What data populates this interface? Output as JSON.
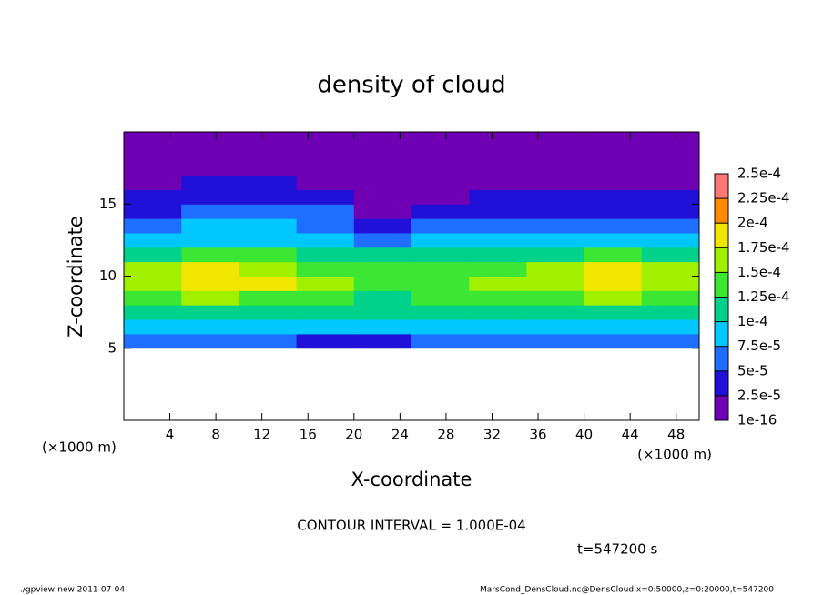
{
  "chart_data": {
    "type": "heatmap",
    "title": "density of cloud",
    "x_label": "X-coordinate",
    "y_label": "Z-coordinate",
    "x_unit": "(×1000 m)",
    "x_unit_right": "(×1000 m)",
    "contour_note": "CONTOUR INTERVAL = 1.000E-04",
    "time_note": "t=547200 s",
    "footer_left": "./gpview-new  2011-07-04",
    "footer_right": "MarsCond_DensCloud.nc@DensCloud,x=0:50000,z=0:20000,t=547200",
    "xlim": [
      0,
      50
    ],
    "xticks": [
      4,
      8,
      12,
      16,
      20,
      24,
      28,
      32,
      36,
      40,
      44,
      48
    ],
    "ylim": [
      0,
      20
    ],
    "yticks": [
      5,
      10,
      15
    ],
    "clim": [
      1e-16,
      0.00025
    ],
    "cticks": [
      {
        "value": 1e-16,
        "label": "1e-16"
      },
      {
        "value": 2.5e-05,
        "label": "2.5e-5"
      },
      {
        "value": 5e-05,
        "label": "5e-5"
      },
      {
        "value": 7.5e-05,
        "label": "7.5e-5"
      },
      {
        "value": 0.0001,
        "label": "1e-4"
      },
      {
        "value": 0.000125,
        "label": "1.25e-4"
      },
      {
        "value": 0.00015,
        "label": "1.5e-4"
      },
      {
        "value": 0.000175,
        "label": "1.75e-4"
      },
      {
        "value": 0.0002,
        "label": "2e-4"
      },
      {
        "value": 0.000225,
        "label": "2.25e-4"
      },
      {
        "value": 0.00025,
        "label": "2.5e-4"
      }
    ],
    "colors": [
      "#7000b4",
      "#2010d8",
      "#1e6eff",
      "#00c8ff",
      "#00d28c",
      "#3ce632",
      "#a0f000",
      "#f0e600",
      "#ff8c00",
      "#ff7878"
    ],
    "x": [
      2.5,
      7.5,
      12.5,
      17.5,
      22.5,
      27.5,
      32.5,
      37.5,
      42.5,
      47.5
    ],
    "y": [
      0.5,
      1.5,
      2.5,
      3.5,
      4.5,
      5.5,
      6.5,
      7.5,
      8.5,
      9.5,
      10.5,
      11.5,
      12.5,
      13.5,
      14.5,
      15.5,
      16.5,
      17.5,
      18.5,
      19.5
    ],
    "z": [
      [
        null,
        null,
        null,
        null,
        null,
        null,
        null,
        null,
        null,
        null
      ],
      [
        null,
        null,
        null,
        null,
        null,
        null,
        null,
        null,
        null,
        null
      ],
      [
        null,
        null,
        null,
        null,
        null,
        null,
        null,
        null,
        null,
        null
      ],
      [
        null,
        null,
        null,
        null,
        null,
        null,
        null,
        null,
        null,
        null
      ],
      [
        null,
        null,
        null,
        null,
        null,
        null,
        null,
        null,
        null,
        null
      ],
      [
        5e-05,
        5e-05,
        5e-05,
        4e-05,
        4e-05,
        6e-05,
        6e-05,
        5e-05,
        5e-05,
        5e-05
      ],
      [
        8e-05,
        8e-05,
        8e-05,
        8e-05,
        8e-05,
        8.5e-05,
        8.5e-05,
        8e-05,
        8e-05,
        8e-05
      ],
      [
        0.00011,
        0.000115,
        0.00011,
        0.000105,
        0.0001,
        0.000105,
        0.000105,
        0.00011,
        0.000115,
        0.00011
      ],
      [
        0.00014,
        0.00015,
        0.000145,
        0.00013,
        0.00012,
        0.000125,
        0.00013,
        0.000145,
        0.00015,
        0.00014
      ],
      [
        0.00016,
        0.00018,
        0.000175,
        0.00015,
        0.000135,
        0.00014,
        0.00015,
        0.00017,
        0.00018,
        0.00016
      ],
      [
        0.000155,
        0.000175,
        0.00017,
        0.000145,
        0.00013,
        0.000135,
        0.000145,
        0.00017,
        0.000175,
        0.000155
      ],
      [
        0.00012,
        0.00013,
        0.000125,
        0.000115,
        0.0001,
        0.00011,
        0.000115,
        0.00012,
        0.000125,
        0.00012
      ],
      [
        8e-05,
        9e-05,
        9e-05,
        8.5e-05,
        6e-05,
        8e-05,
        9e-05,
        8.5e-05,
        8e-05,
        7.5e-05
      ],
      [
        5.5e-05,
        8e-05,
        8e-05,
        6.5e-05,
        4e-05,
        5e-05,
        6e-05,
        5.5e-05,
        5e-05,
        5e-05
      ],
      [
        4e-05,
        6e-05,
        7e-05,
        5e-05,
        2e-05,
        3e-05,
        4e-05,
        4e-05,
        3.5e-05,
        3.5e-05
      ],
      [
        3e-05,
        4.5e-05,
        4.5e-05,
        3e-05,
        1.5e-05,
        2e-05,
        3e-05,
        2.5e-05,
        2.5e-05,
        2.5e-05
      ],
      [
        1.5e-05,
        2.5e-05,
        3e-05,
        2e-05,
        1e-05,
        1.5e-05,
        2e-05,
        1.5e-05,
        1.5e-05,
        1.5e-05
      ],
      [
        1e-05,
        1e-05,
        1.5e-05,
        1e-05,
        1e-05,
        1e-05,
        1e-05,
        1e-05,
        1e-05,
        1e-05
      ],
      [
        5e-06,
        5e-06,
        5e-06,
        5e-06,
        5e-06,
        5e-06,
        5e-06,
        5e-06,
        5e-06,
        5e-06
      ],
      [
        5e-06,
        5e-06,
        5e-06,
        5e-06,
        5e-06,
        5e-06,
        5e-06,
        5e-06,
        5e-06,
        5e-06
      ]
    ]
  }
}
